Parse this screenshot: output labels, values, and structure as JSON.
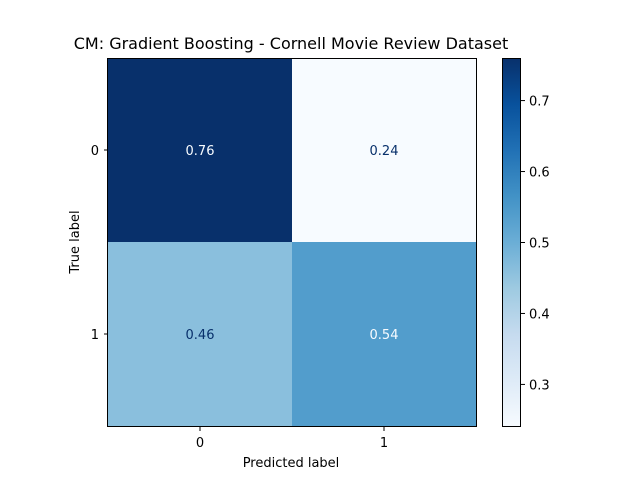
{
  "chart_data": {
    "type": "heatmap",
    "title": "CM: Gradient Boosting - Cornell Movie Review Dataset",
    "xlabel": "Predicted label",
    "ylabel": "True label",
    "x_categories": [
      "0",
      "1"
    ],
    "y_categories": [
      "0",
      "1"
    ],
    "matrix": [
      [
        0.76,
        0.24
      ],
      [
        0.46,
        0.54
      ]
    ],
    "cell_labels": [
      [
        "0.76",
        "0.24"
      ],
      [
        "0.46",
        "0.54"
      ]
    ],
    "colormap": "Blues",
    "colorbar": {
      "range": [
        0.24,
        0.76
      ],
      "ticks": [
        0.3,
        0.4,
        0.5,
        0.6,
        0.7
      ],
      "tick_labels": [
        "0.3",
        "0.4",
        "0.5",
        "0.6",
        "0.7"
      ],
      "placement": "right"
    },
    "grid": false
  }
}
